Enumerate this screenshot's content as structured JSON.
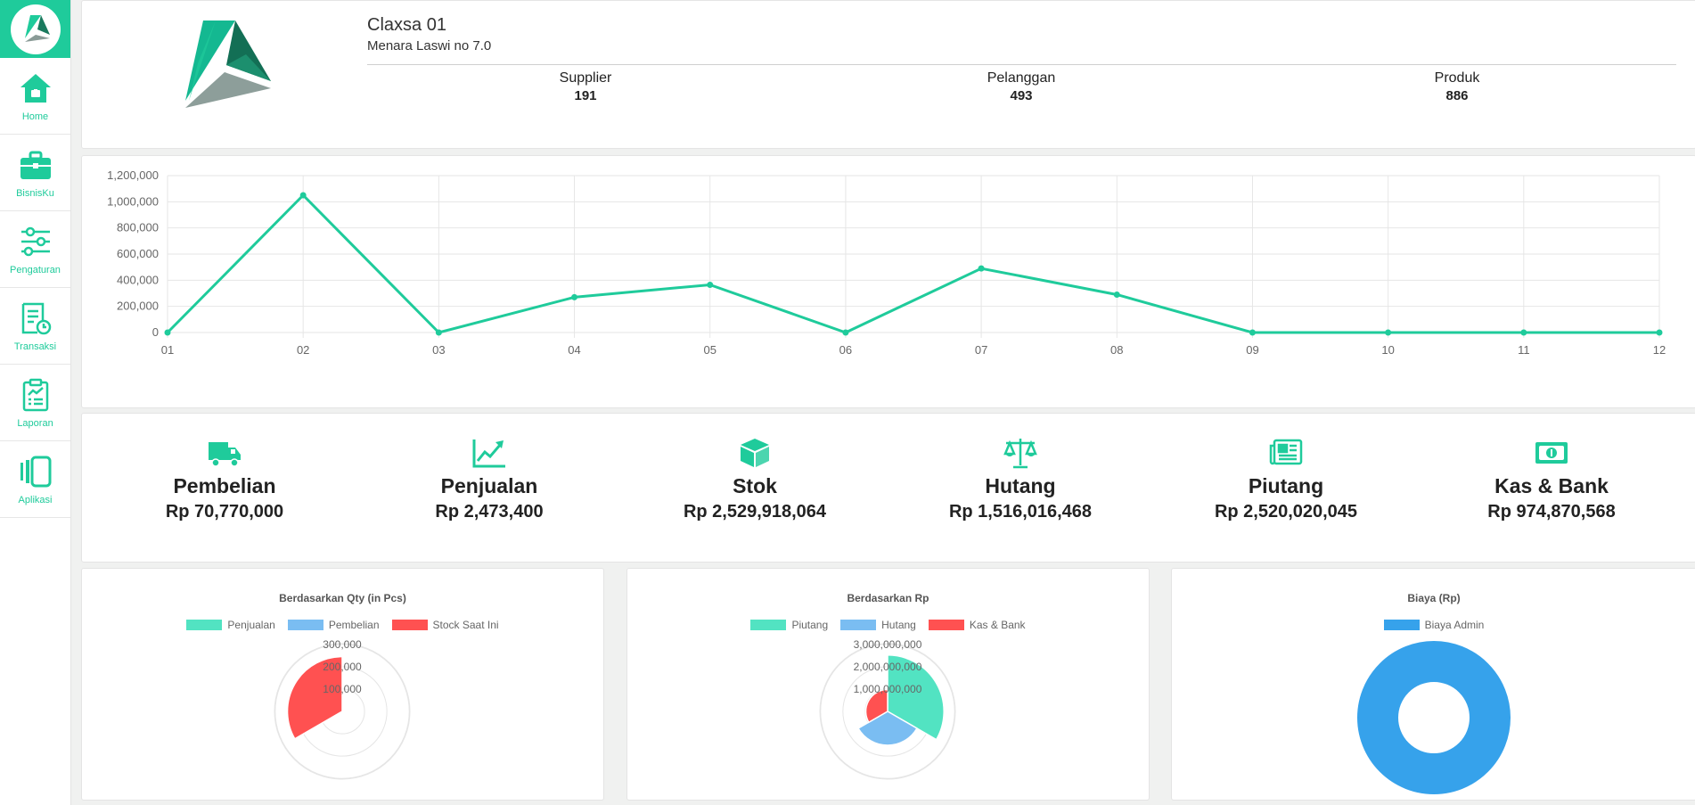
{
  "sidebar": {
    "items": [
      {
        "label": "Home",
        "icon": "home-icon"
      },
      {
        "label": "BisnisKu",
        "icon": "briefcase-icon"
      },
      {
        "label": "Pengaturan",
        "icon": "sliders-icon"
      },
      {
        "label": "Transaksi",
        "icon": "transaction-icon"
      },
      {
        "label": "Laporan",
        "icon": "clipboard-report-icon"
      },
      {
        "label": "Aplikasi",
        "icon": "apps-icon"
      }
    ]
  },
  "company": {
    "name": "Claxsa 01",
    "address": "Menara Laswi no 7.0",
    "stats": [
      {
        "title": "Supplier",
        "value": "191"
      },
      {
        "title": "Pelanggan",
        "value": "493"
      },
      {
        "title": "Produk",
        "value": "886"
      }
    ]
  },
  "colors": {
    "accent": "#1fcb9b",
    "red": "#ff5151",
    "blue": "#7abdf2",
    "teal_light": "#52e3c2",
    "donut_blue": "#36a2eb"
  },
  "tiles": [
    {
      "name": "Pembelian",
      "value": "Rp 70,770,000",
      "icon": "truck-icon"
    },
    {
      "name": "Penjualan",
      "value": "Rp 2,473,400",
      "icon": "trend-up-icon"
    },
    {
      "name": "Stok",
      "value": "Rp 2,529,918,064",
      "icon": "box-icon"
    },
    {
      "name": "Hutang",
      "value": "Rp 1,516,016,468",
      "icon": "scale-icon"
    },
    {
      "name": "Piutang",
      "value": "Rp 2,520,020,045",
      "icon": "newspaper-icon"
    },
    {
      "name": "Kas & Bank",
      "value": "Rp 974,870,568",
      "icon": "money-icon"
    }
  ],
  "chart_data": [
    {
      "type": "line",
      "title": "",
      "x": [
        "01",
        "02",
        "03",
        "04",
        "05",
        "06",
        "07",
        "08",
        "09",
        "10",
        "11",
        "12"
      ],
      "series": [
        {
          "values": [
            0,
            1050000,
            0,
            270000,
            365000,
            0,
            490000,
            290000,
            0,
            0,
            0,
            0
          ]
        }
      ],
      "ylim": [
        0,
        1200000
      ],
      "yticks": [
        "0",
        "200,000",
        "400,000",
        "600,000",
        "800,000",
        "1,000,000",
        "1,200,000"
      ],
      "grid": true
    },
    {
      "type": "pie",
      "title": "Berdasarkan Qty (in Pcs)",
      "labels": [
        "Penjualan",
        "Pembelian",
        "Stock Saat Ini"
      ],
      "values": [
        0,
        0,
        245000
      ],
      "rmax": 300000,
      "ticks": [
        "100,000",
        "200,000",
        "300,000"
      ],
      "colors": [
        "#52e3c2",
        "#7abdf2",
        "#ff5151"
      ]
    },
    {
      "type": "pie",
      "title": "Berdasarkan Rp",
      "labels": [
        "Piutang",
        "Hutang",
        "Kas & Bank"
      ],
      "values": [
        2520020045,
        1516016468,
        974870568
      ],
      "rmax": 3000000000,
      "ticks": [
        "1,000,000,000",
        "2,000,000,000",
        "3,000,000,000"
      ],
      "colors": [
        "#52e3c2",
        "#7abdf2",
        "#ff5151"
      ]
    },
    {
      "type": "pie",
      "title": "Biaya (Rp)",
      "labels": [
        "Biaya Admin"
      ],
      "values": [
        1
      ],
      "colors": [
        "#36a2eb"
      ]
    }
  ]
}
